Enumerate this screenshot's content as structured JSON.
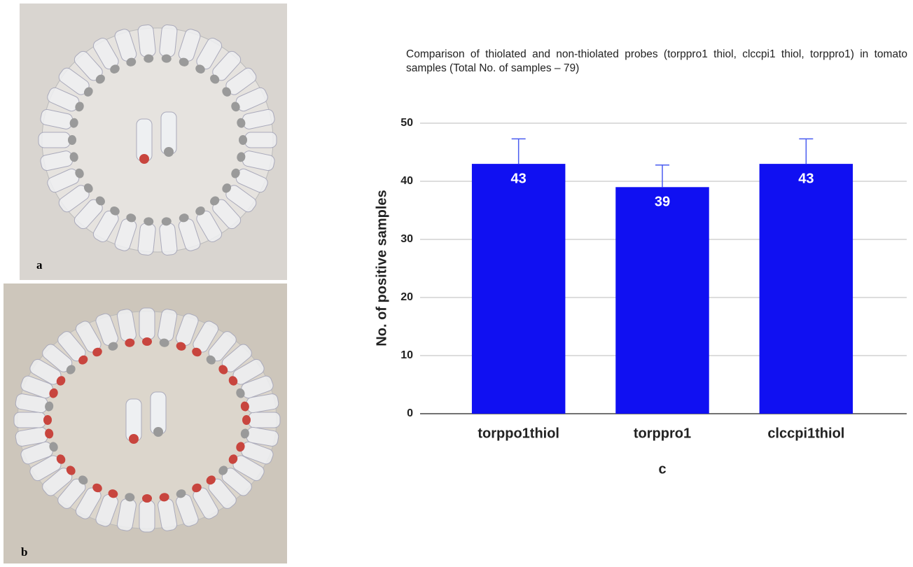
{
  "panels": [
    "a",
    "b"
  ],
  "chart_data": {
    "type": "bar",
    "title": "Comparison of thiolated and non-thiolated probes (torppro1 thiol, clccpi1 thiol, torppro1) in tomato samples (Total No. of samples – 79)",
    "ylabel": "No. of positive samples",
    "panel": "c",
    "categories": [
      "torppo1thiol",
      "torppro1",
      "clccpi1thiol"
    ],
    "values": [
      43,
      39,
      43
    ],
    "errors": [
      4.3,
      3.8,
      4.3
    ],
    "color": "#1010f2",
    "ylim": [
      0,
      50
    ],
    "yticks": [
      0,
      10,
      20,
      30,
      40,
      50
    ],
    "grid": true
  }
}
